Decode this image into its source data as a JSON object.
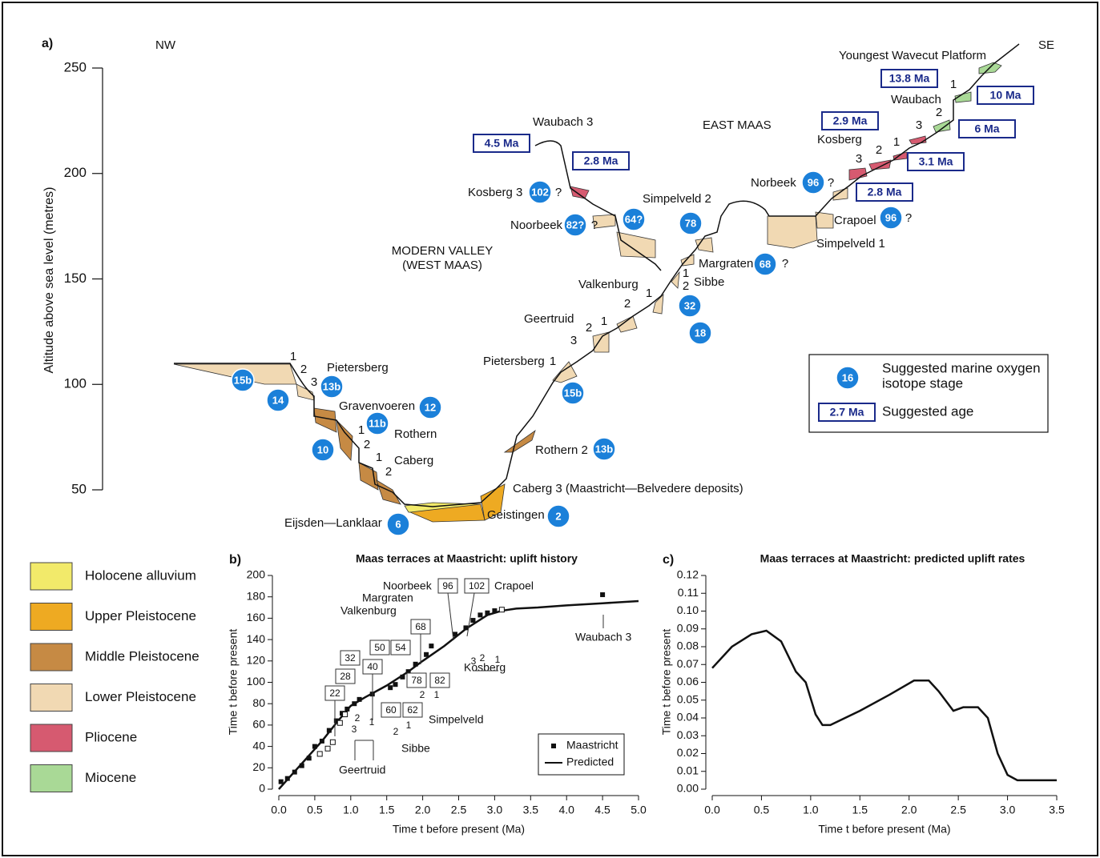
{
  "panel_a": {
    "label": "a)",
    "y_axis_label": "Altitude above sea level (metres)",
    "ylim": [
      50,
      250
    ],
    "yticks": [
      50,
      100,
      150,
      200,
      250
    ],
    "labels": [
      "NW",
      "SE",
      "Youngest Wavecut Platform",
      "Waubach 3",
      "EAST MAAS",
      "Waubach",
      "Kosberg",
      "Kosberg 3",
      "?",
      "Noorbeek",
      "?",
      "Simpelveld 2",
      "Norbeek",
      "?",
      "MODERN VALLEY",
      "(WEST MAAS)",
      "Crapoel",
      "?",
      "Simpelveld 1",
      "Margraten",
      "?",
      "Valkenburg",
      "Sibbe",
      "Geertruid",
      "Pietersberg",
      "Pietersberg",
      "Gravenvoeren",
      "Rothern",
      "Caberg",
      "Rothern 2",
      "Caberg 3 (Maastricht—Belvedere deposits)",
      "Geistingen",
      "Eijsden—Lanklaar",
      "1",
      "2",
      "3",
      "1",
      "2",
      "1",
      "2",
      "1",
      "3",
      "2",
      "1",
      "2",
      "1",
      "1",
      "2",
      "3",
      "2",
      "1",
      "3",
      "2",
      "1"
    ],
    "stages": [
      "102",
      "82?",
      "64?",
      "78",
      "96",
      "96",
      "68",
      "32",
      "18",
      "15b",
      "14",
      "13b",
      "12",
      "11b",
      "10",
      "15b",
      "13b",
      "6",
      "2"
    ],
    "ages": [
      "4.5 Ma",
      "2.8 Ma",
      "2.9 Ma",
      "13.8 Ma",
      "10 Ma",
      "6 Ma",
      "3.1 Ma",
      "2.8 Ma"
    ],
    "key": {
      "stage_example": "16",
      "stage_text": [
        "Suggested marine oxygen",
        "isotope stage"
      ],
      "age_example": "2.7 Ma",
      "age_text": "Suggested age"
    }
  },
  "legend": {
    "items": [
      {
        "name": "Holocene alluvium",
        "color": "#f2ea6a"
      },
      {
        "name": "Upper Pleistocene",
        "color": "#eeaa22"
      },
      {
        "name": "Middle Pleistocene",
        "color": "#c68a44"
      },
      {
        "name": "Lower Pleistocene",
        "color": "#f1d9b3"
      },
      {
        "name": "Pliocene",
        "color": "#d65a70"
      },
      {
        "name": "Miocene",
        "color": "#a9d996"
      }
    ]
  },
  "chart_data": [
    {
      "type": "scatter",
      "panel_label": "b)",
      "title": "Maas terraces at Maastricht: uplift history",
      "x_label": "Time t before present (Ma)",
      "y_label": "Time t before present",
      "xlim": [
        0,
        5
      ],
      "ylim": [
        0,
        200
      ],
      "xticks": [
        {
          "value": 0,
          "label": "0.0"
        },
        0.5,
        {
          "value": 1,
          "label": "1.0"
        },
        1.5,
        {
          "value": 2,
          "label": "2.0"
        },
        2.5,
        {
          "value": 3,
          "label": "3.0"
        },
        3.5,
        {
          "value": 4,
          "label": "4.0"
        },
        4.5,
        {
          "value": 5,
          "label": "5.0"
        }
      ],
      "yticks": [
        0,
        20,
        40,
        60,
        80,
        100,
        120,
        140,
        160,
        180,
        200
      ],
      "legend_position": "lower right",
      "series": [
        {
          "name": "Maastricht",
          "color": "#111111",
          "marker": "square",
          "x": [
            0.03,
            0.12,
            0.22,
            0.32,
            0.42,
            0.5,
            0.6,
            0.7,
            0.8,
            0.88,
            0.95,
            1.05,
            1.12,
            1.3,
            1.55,
            1.62,
            1.72,
            1.8,
            1.9,
            2.05,
            2.12,
            2.45,
            2.6,
            2.7,
            2.8,
            2.9,
            3.0,
            4.5
          ],
          "values": [
            7,
            10,
            16,
            22,
            29,
            40,
            45,
            55,
            64,
            71,
            75,
            80,
            84,
            89,
            95,
            98,
            105,
            110,
            117,
            126,
            134,
            145,
            151,
            158,
            163,
            165,
            167,
            182
          ]
        },
        {
          "name": "Predicted",
          "color": "#111111",
          "marker": "line",
          "x": [
            0,
            0.2,
            0.4,
            0.6,
            0.8,
            1.0,
            1.2,
            1.5,
            1.8,
            2.0,
            2.3,
            2.6,
            2.9,
            3.1,
            3.3,
            3.6,
            4.0,
            4.5,
            5.0
          ],
          "values": [
            0,
            15,
            30,
            45,
            62,
            78,
            86,
            97,
            110,
            120,
            134,
            150,
            163,
            167,
            169,
            170,
            172,
            174,
            176
          ]
        },
        {
          "color": "#111111",
          "marker": "open-square",
          "x": [
            0.57,
            0.68,
            0.75,
            0.85,
            0.92,
            3.1
          ],
          "values": [
            33,
            38,
            44,
            62,
            70,
            168
          ]
        }
      ],
      "stage_boxes": [
        "22",
        "28",
        "32",
        "40",
        "50",
        "54",
        "68",
        "96",
        "102",
        "78",
        "82",
        "60",
        "62"
      ],
      "annotations": [
        "Noorbeek",
        "Crapoel",
        "Margraten",
        "Valkenburg",
        "Waubach 3",
        "Kosberg",
        "Simpelveld",
        "Sibbe",
        "Geertruid",
        "3",
        "2",
        "1",
        "2",
        "1",
        "2",
        "1",
        "3",
        "2",
        "1"
      ]
    },
    {
      "type": "line",
      "panel_label": "c)",
      "title": "Maas terraces at Maastricht: predicted uplift rates",
      "x_label": "Time t before present (Ma)",
      "y_label": "Time t before present",
      "xlim": [
        0,
        3.5
      ],
      "ylim": [
        0,
        0.12
      ],
      "xticks": [
        {
          "value": 0,
          "label": "0.0"
        },
        0.5,
        {
          "value": 1,
          "label": "1.0"
        },
        1.5,
        {
          "value": 2,
          "label": "2.0"
        },
        2.5,
        {
          "value": 3,
          "label": "3.0"
        },
        3.5
      ],
      "yticks": [
        {
          "value": 0,
          "label": "0.00"
        },
        0.01,
        0.02,
        0.03,
        0.04,
        0.05,
        0.06,
        0.07,
        0.08,
        0.09,
        {
          "value": 0.1,
          "label": "0.10"
        },
        0.11,
        0.12
      ],
      "series": [
        {
          "color": "#111111",
          "marker": "line",
          "x": [
            0,
            0.2,
            0.4,
            0.55,
            0.7,
            0.85,
            0.95,
            1.05,
            1.12,
            1.2,
            1.5,
            1.8,
            2.05,
            2.2,
            2.3,
            2.45,
            2.55,
            2.7,
            2.8,
            2.9,
            3.0,
            3.1,
            3.5
          ],
          "values": [
            0.068,
            0.08,
            0.087,
            0.089,
            0.083,
            0.066,
            0.06,
            0.042,
            0.036,
            0.036,
            0.044,
            0.053,
            0.061,
            0.061,
            0.055,
            0.044,
            0.046,
            0.046,
            0.04,
            0.02,
            0.008,
            0.005,
            0.005
          ]
        }
      ]
    }
  ]
}
